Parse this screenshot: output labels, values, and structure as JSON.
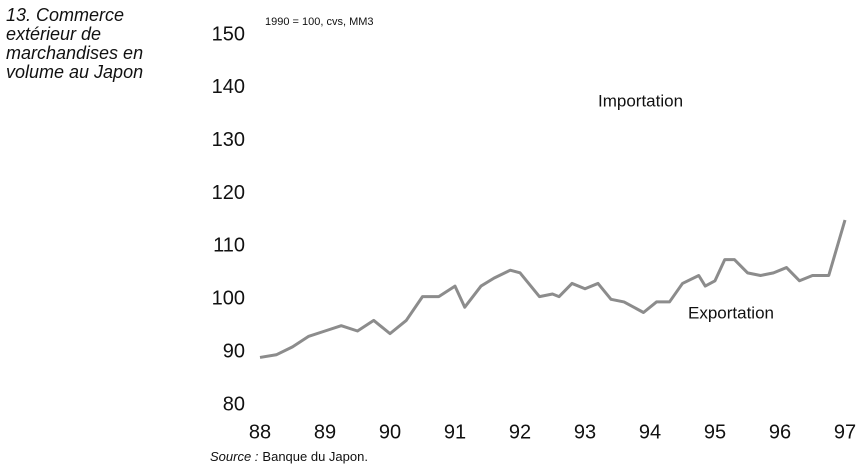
{
  "chart_data": {
    "type": "line",
    "title": "13. Commerce extérieur de marchandises en volume au Japon",
    "subtitle": "1990 = 100, cvs, MM3",
    "annotations": [
      "Importation"
    ],
    "source_label": "Source :",
    "source": "Banque du Japon.",
    "x": [
      88.0,
      88.25,
      88.5,
      88.75,
      89.0,
      89.25,
      89.5,
      89.75,
      90.0,
      90.25,
      90.5,
      90.75,
      91.0,
      91.15,
      91.4,
      91.6,
      91.85,
      92.0,
      92.3,
      92.5,
      92.6,
      92.8,
      93.0,
      93.2,
      93.4,
      93.6,
      93.75,
      93.9,
      94.1,
      94.3,
      94.5,
      94.75,
      94.85,
      95.0,
      95.15,
      95.3,
      95.5,
      95.7,
      95.9,
      96.1,
      96.3,
      96.5,
      96.75,
      97.0
    ],
    "series": [
      {
        "name": "Exportation",
        "color": "#8c8c8c",
        "values": [
          89,
          89.5,
          91,
          93,
          94,
          95,
          94,
          96,
          93.5,
          96,
          100.5,
          100.5,
          102.5,
          98.5,
          102.5,
          104,
          105.5,
          105,
          100.5,
          101,
          100.5,
          103,
          102,
          103,
          100,
          99.5,
          98.5,
          97.5,
          99.5,
          99.5,
          103,
          104.5,
          102.5,
          103.5,
          107.5,
          107.5,
          105,
          104.5,
          105,
          106,
          103.5,
          104.5,
          104.5,
          115
        ]
      }
    ],
    "xlim": [
      88,
      97
    ],
    "xticks": [
      88,
      89,
      90,
      91,
      92,
      93,
      94,
      95,
      96,
      97
    ],
    "ylim": [
      80,
      150
    ],
    "yticks": [
      80,
      90,
      100,
      110,
      120,
      130,
      140,
      150
    ]
  }
}
